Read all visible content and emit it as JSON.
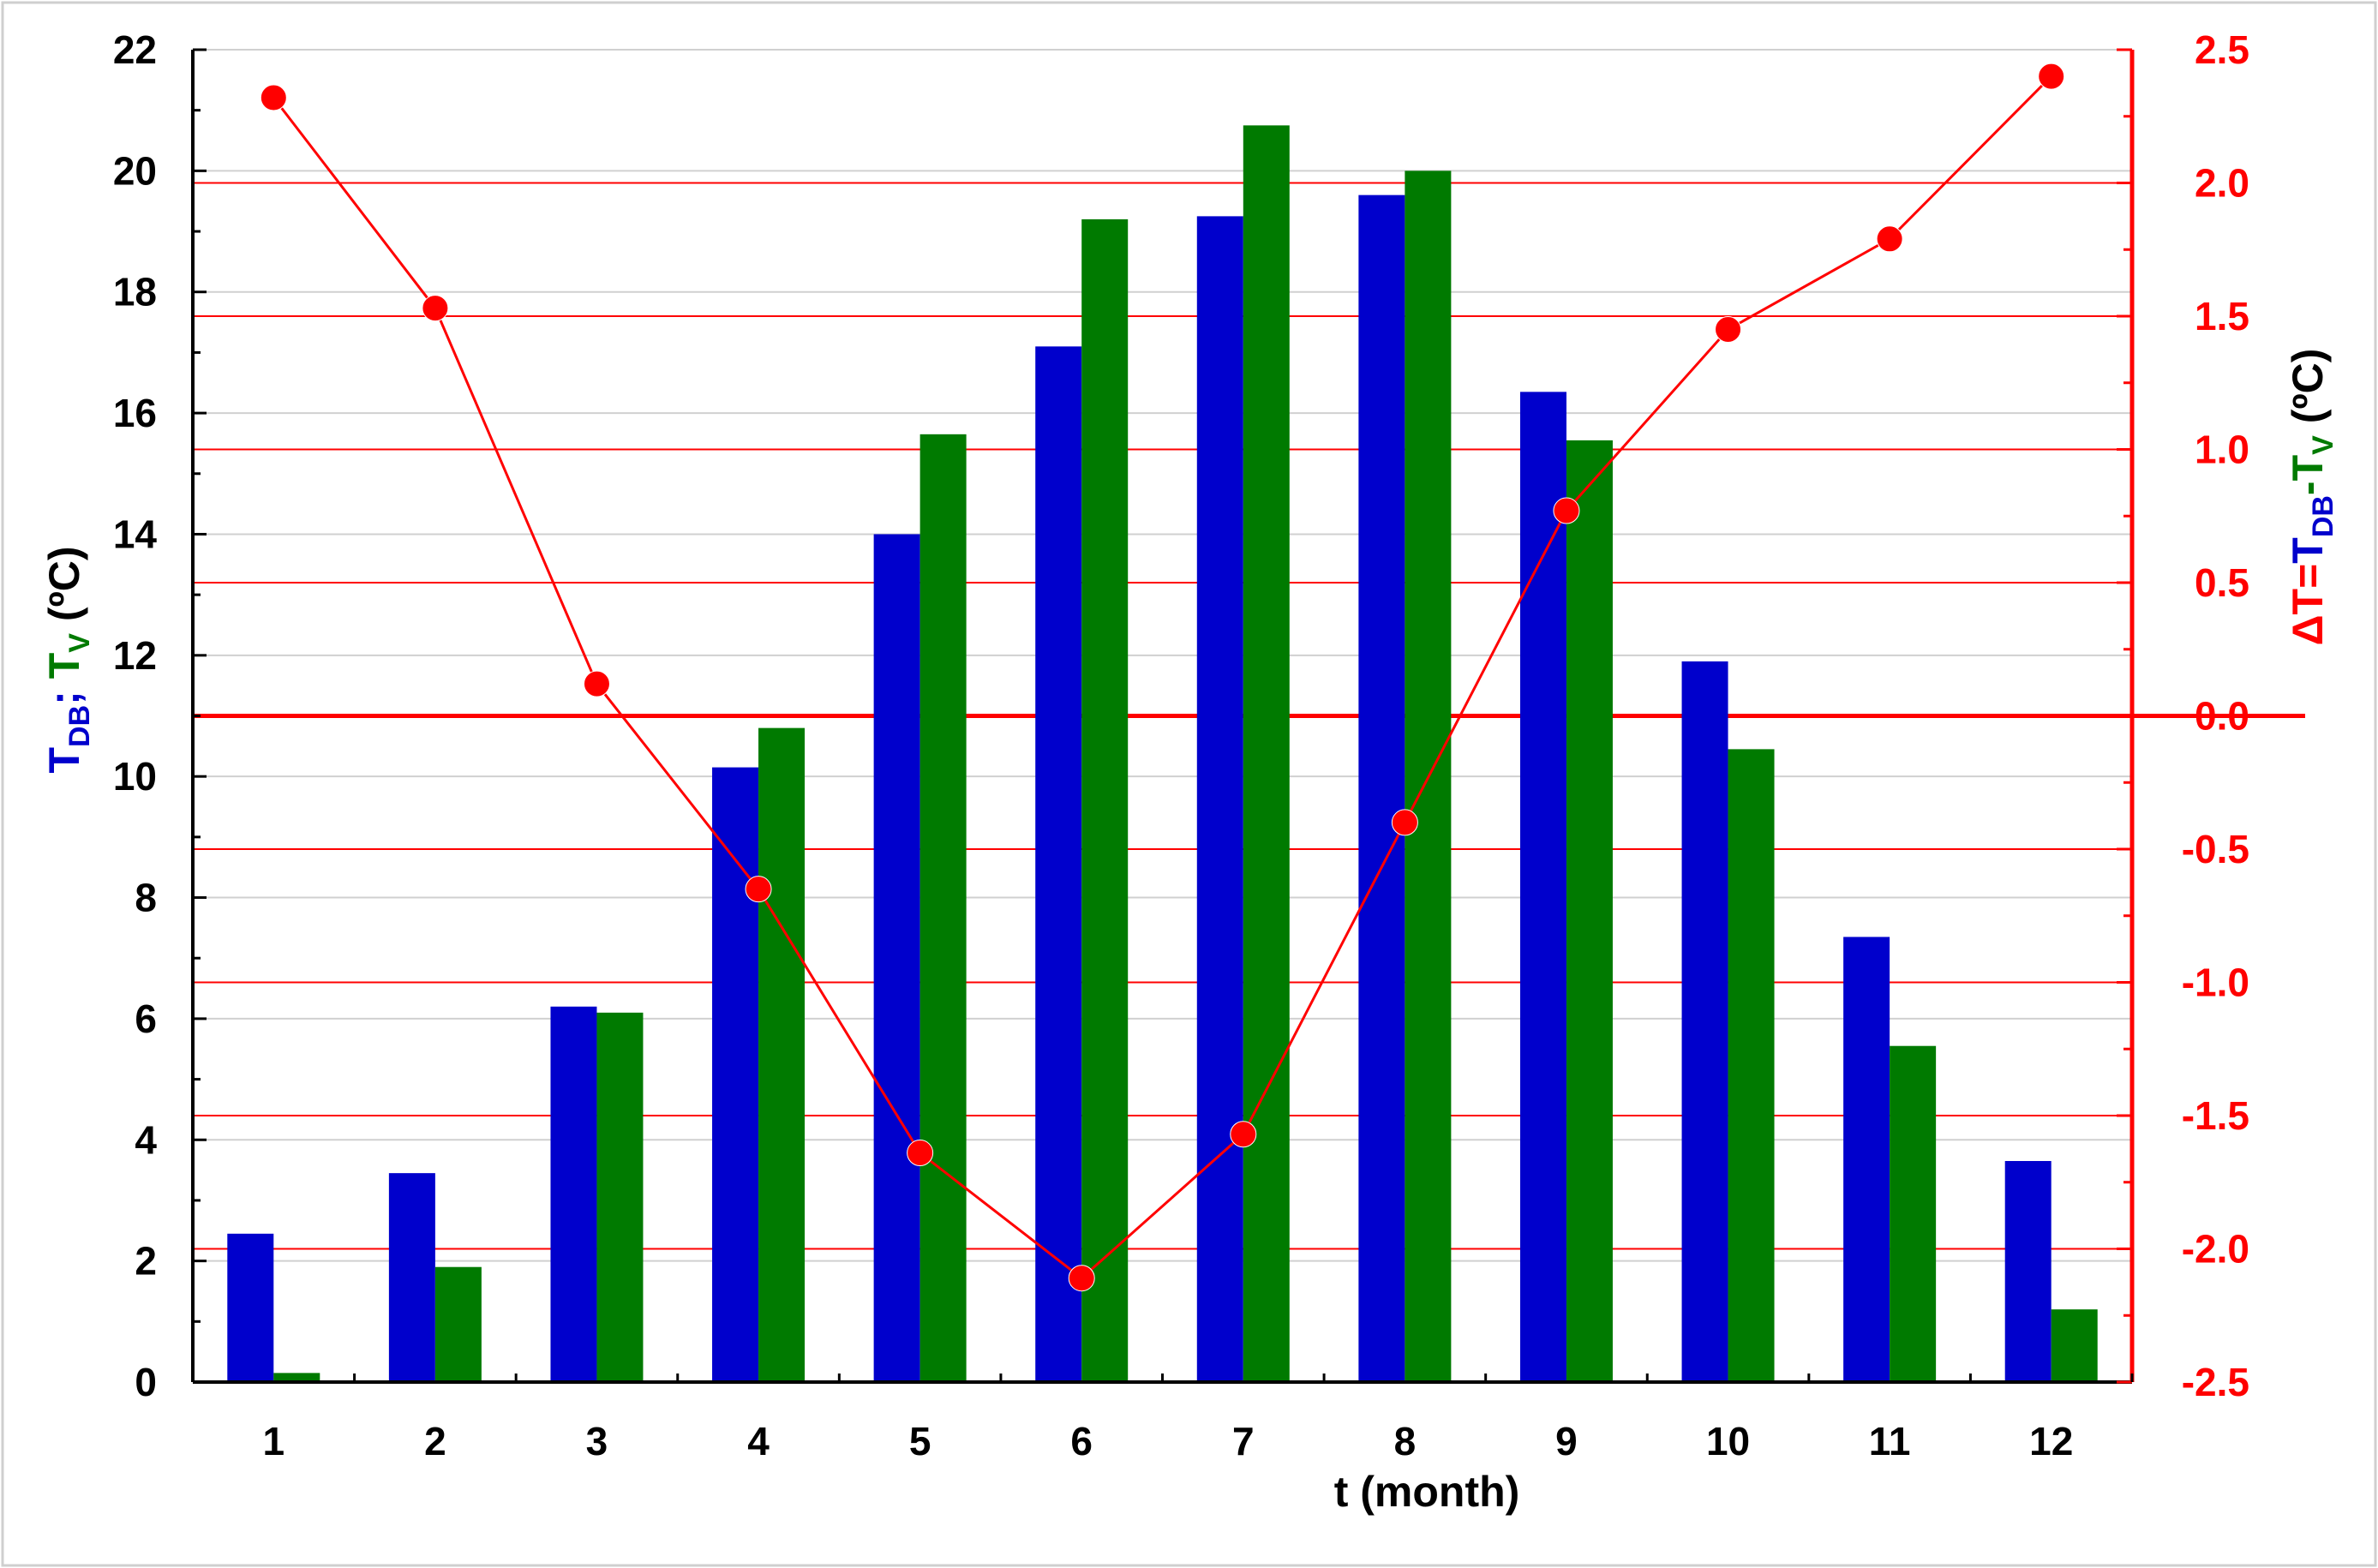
{
  "chart_data": {
    "type": "bar",
    "categories": [
      "1",
      "2",
      "3",
      "4",
      "5",
      "6",
      "7",
      "8",
      "9",
      "10",
      "11",
      "12"
    ],
    "series": [
      {
        "name": "T_DB",
        "kind": "bar",
        "axis": "left",
        "color": "#0000CC",
        "values": [
          2.45,
          3.45,
          6.2,
          10.15,
          14.0,
          17.1,
          19.25,
          19.6,
          16.35,
          11.9,
          7.35,
          3.65
        ]
      },
      {
        "name": "T_V",
        "kind": "bar",
        "axis": "left",
        "color": "#007A00",
        "values": [
          0.15,
          1.9,
          6.1,
          10.8,
          15.65,
          19.2,
          20.75,
          20.0,
          15.55,
          10.45,
          5.55,
          1.2
        ]
      },
      {
        "name": "ΔT",
        "kind": "line",
        "axis": "right",
        "color": "#FF0000",
        "values": [
          2.32,
          1.53,
          0.12,
          -0.65,
          -1.64,
          -2.11,
          -1.57,
          -0.4,
          0.77,
          1.45,
          1.79,
          2.4
        ]
      }
    ],
    "left_axis": {
      "ylim": [
        0,
        22
      ],
      "ticks": [
        "0",
        "2",
        "4",
        "6",
        "8",
        "10",
        "12",
        "14",
        "16",
        "18",
        "20",
        "22"
      ],
      "title": {
        "main1": "T",
        "sub1": "DB",
        "sep": "; ",
        "main2": "T",
        "sub2": "V",
        "unit": " (ºC)"
      }
    },
    "right_axis": {
      "ylim": [
        -2.5,
        2.5
      ],
      "ticks": [
        "-2.5",
        "-2.0",
        "-1.5",
        "-1.0",
        "-0.5",
        "0.0",
        "0.5",
        "1.0",
        "1.5",
        "2.0",
        "2.5"
      ],
      "title": {
        "pre": "ΔT=",
        "main1": "T",
        "sub1": "DB",
        "dash": "-",
        "main2": "T",
        "sub2": "V",
        "unit": " (ºC)"
      }
    },
    "xlabel": "t (month)",
    "grid": true,
    "colors": {
      "dbt": "#0000CC",
      "vt": "#007A00",
      "delta": "#FF0000",
      "axis": "#000000",
      "grid": "#D0D0D0"
    }
  }
}
